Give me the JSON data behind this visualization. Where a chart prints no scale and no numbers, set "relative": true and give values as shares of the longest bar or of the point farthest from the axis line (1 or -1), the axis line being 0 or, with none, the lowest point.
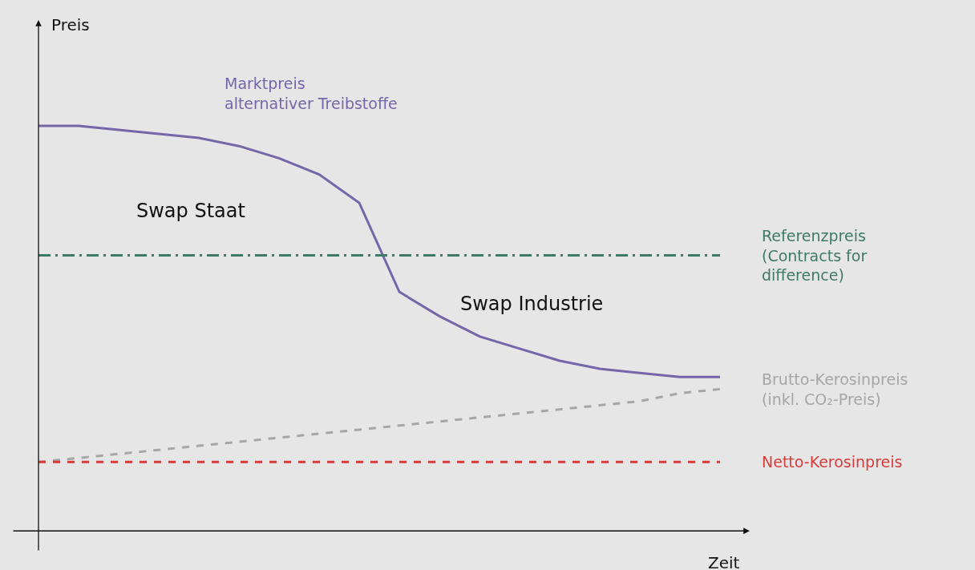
{
  "chart_data": {
    "type": "line",
    "relative": true,
    "xlabel": "Zeit",
    "legend": false,
    "grid": false,
    "marker": "none",
    "categories": [
      null,
      null,
      null,
      null,
      null,
      null,
      null,
      null,
      null,
      null,
      null,
      null,
      null,
      null,
      null,
      null,
      null,
      null
    ],
    "series": [
      {
        "name": "Marktpreis\nalternativer Treibstoffe",
        "color": "#7466a8",
        "line_style": "solid",
        "values": [
          1.0,
          1.0,
          0.99,
          0.98,
          0.97,
          0.95,
          0.92,
          0.88,
          0.81,
          0.59,
          0.53,
          0.48,
          0.45,
          0.42,
          0.4,
          0.39,
          0.38,
          0.38
        ]
      },
      {
        "name": "Referenzpreis\n(Contracts for\ndifference)",
        "color": "#3f7a66",
        "line_style": "dashdot",
        "values": [
          0.68,
          0.68,
          0.68,
          0.68,
          0.68,
          0.68,
          0.68,
          0.68,
          0.68,
          0.68,
          0.68,
          0.68,
          0.68,
          0.68,
          0.68,
          0.68,
          0.68,
          0.68
        ]
      },
      {
        "name": "Brutto-Kerosinpreis\n(inkl. CO₂-Preis)",
        "color": "#a6a6a6",
        "line_style": "dashed",
        "values": [
          0.17,
          0.18,
          0.19,
          0.2,
          0.21,
          0.22,
          0.23,
          0.24,
          0.25,
          0.26,
          0.27,
          0.28,
          0.29,
          0.3,
          0.31,
          0.32,
          0.34,
          0.35
        ]
      },
      {
        "name": "Netto-Kerosinpreis",
        "color": "#d63c3c",
        "line_style": "dashed",
        "values": [
          0.17,
          0.17,
          0.17,
          0.17,
          0.17,
          0.17,
          0.17,
          0.17,
          0.17,
          0.17,
          0.17,
          0.17,
          0.17,
          0.17,
          0.17,
          0.17,
          0.17,
          0.17
        ]
      }
    ],
    "annotations": [
      "Swap Staat",
      "Swap Industrie",
      "Preis"
    ]
  }
}
